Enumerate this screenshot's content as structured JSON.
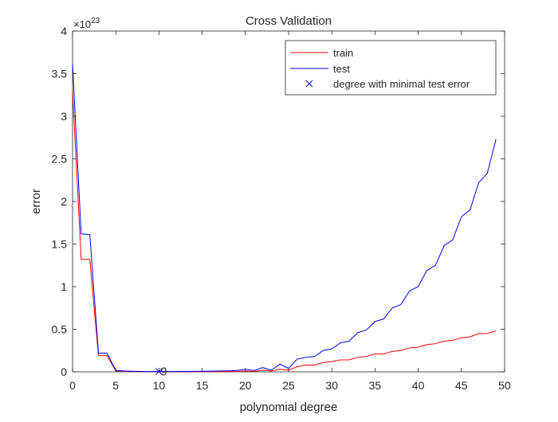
{
  "chart_data": {
    "type": "line",
    "title": "Cross Validation",
    "xlabel": "polynomial degree",
    "ylabel": "error",
    "xlim": [
      0,
      50
    ],
    "ylim": [
      0,
      4
    ],
    "y_exponent_label": "×10",
    "y_exponent": "23",
    "xticks": [
      "0",
      "5",
      "10",
      "15",
      "20",
      "25",
      "30",
      "35",
      "40",
      "45",
      "50"
    ],
    "yticks": [
      "0",
      "0.5",
      "1",
      "1.5",
      "2",
      "2.5",
      "3",
      "3.5",
      "4"
    ],
    "x": [
      0,
      1,
      2,
      3,
      4,
      5,
      6,
      7,
      8,
      9,
      10,
      11,
      12,
      13,
      14,
      15,
      16,
      17,
      18,
      19,
      20,
      21,
      22,
      23,
      24,
      25,
      26,
      27,
      28,
      29,
      30,
      31,
      32,
      33,
      34,
      35,
      36,
      37,
      38,
      39,
      40,
      41,
      42,
      43,
      44,
      45,
      46,
      47,
      48,
      49
    ],
    "series": [
      {
        "name": "train",
        "color": "#ff0000",
        "values": [
          3.3,
          1.32,
          1.32,
          0.19,
          0.19,
          0.012,
          0.006,
          0.004,
          0.003,
          0.002,
          0.002,
          0.002,
          0.002,
          0.002,
          0.002,
          0.002,
          0.003,
          0.004,
          0.004,
          0.005,
          0.01,
          0.005,
          0.02,
          0.01,
          0.03,
          0.02,
          0.06,
          0.08,
          0.08,
          0.11,
          0.12,
          0.14,
          0.14,
          0.17,
          0.18,
          0.21,
          0.21,
          0.24,
          0.25,
          0.28,
          0.29,
          0.32,
          0.33,
          0.36,
          0.37,
          0.4,
          0.41,
          0.45,
          0.45,
          0.48
        ]
      },
      {
        "name": "test",
        "color": "#0000ff",
        "values": [
          3.62,
          1.62,
          1.61,
          0.22,
          0.22,
          0.016,
          0.01,
          0.007,
          0.005,
          0.004,
          0.004,
          0.004,
          0.005,
          0.005,
          0.006,
          0.007,
          0.008,
          0.01,
          0.012,
          0.015,
          0.03,
          0.015,
          0.05,
          0.02,
          0.09,
          0.04,
          0.15,
          0.17,
          0.18,
          0.25,
          0.27,
          0.34,
          0.36,
          0.46,
          0.49,
          0.59,
          0.62,
          0.75,
          0.79,
          0.95,
          1.0,
          1.19,
          1.25,
          1.48,
          1.55,
          1.82,
          1.9,
          2.22,
          2.33,
          2.73
        ]
      }
    ],
    "marker": {
      "name": "degree with minimal test error",
      "x": 10,
      "y": 0.004,
      "label": "9",
      "color": "#0000ff"
    },
    "legend": {
      "placement": "top-right",
      "entries": [
        "train",
        "test",
        "degree with minimal test error"
      ]
    },
    "grid": false
  }
}
